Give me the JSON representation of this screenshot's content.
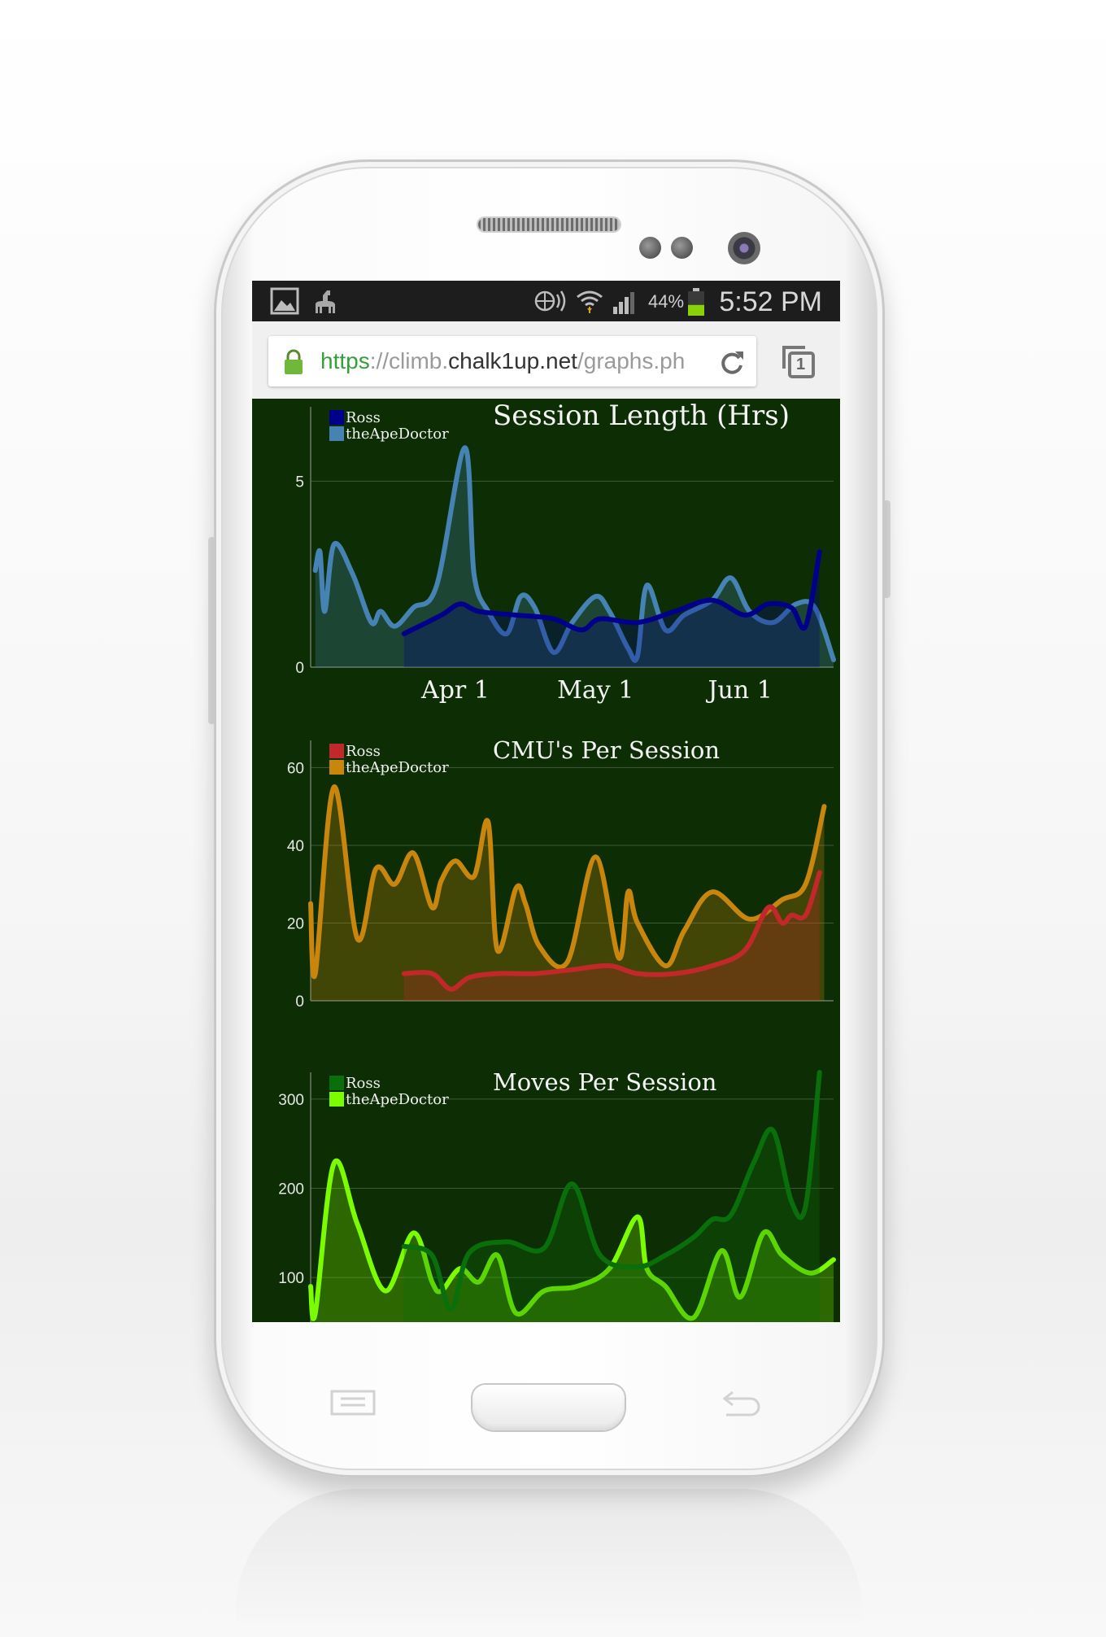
{
  "status_bar": {
    "time": "5:52 PM",
    "battery_percent": "44%",
    "battery_level": 0.44,
    "icons": [
      "gallery-icon",
      "alpaca-icon",
      "nfc-icon",
      "wifi-icon",
      "signal-icon",
      "battery-icon"
    ]
  },
  "browser": {
    "url_scheme": "https",
    "url_sep": "://climb.",
    "url_host": "chalk1up.net",
    "url_path": "/graphs.ph",
    "tab_count": "1"
  },
  "colors": {
    "page_bg": "#0d2e04",
    "status_bg": "#1d1d1d",
    "url_green": "#35a039"
  },
  "x_axis": {
    "tick_labels": [
      "Apr 1",
      "May 1",
      "Jun 1"
    ],
    "tick_dates": [
      "2013-04-01",
      "2013-05-01",
      "2013-06-01"
    ],
    "range": [
      "2013-03-01",
      "2013-06-21"
    ]
  },
  "chart_data": [
    {
      "type": "area",
      "title": "Session Length (Hrs)",
      "xlabel": "",
      "ylabel": "",
      "ylim": [
        0,
        7
      ],
      "y_ticks": [
        0,
        5
      ],
      "grid": true,
      "legend": "top-left",
      "series": [
        {
          "name": "Ross",
          "color": "#00008b",
          "x": [
            "2013-03-21",
            "2013-03-29",
            "2013-04-02",
            "2013-04-06",
            "2013-04-14",
            "2013-04-22",
            "2013-04-28",
            "2013-05-02",
            "2013-05-10",
            "2013-05-18",
            "2013-05-26",
            "2013-06-02",
            "2013-06-07",
            "2013-06-12",
            "2013-06-15",
            "2013-06-18"
          ],
          "y": [
            0.9,
            1.4,
            1.7,
            1.5,
            1.4,
            1.3,
            1.0,
            1.3,
            1.2,
            1.5,
            1.8,
            1.4,
            1.7,
            1.6,
            1.1,
            3.1
          ]
        },
        {
          "name": "theApeDoctor",
          "color": "#4682b4",
          "x": [
            "2013-03-02",
            "2013-03-03",
            "2013-03-04",
            "2013-03-06",
            "2013-03-10",
            "2013-03-14",
            "2013-03-16",
            "2013-03-19",
            "2013-03-23",
            "2013-03-28",
            "2013-04-03",
            "2013-04-05",
            "2013-04-08",
            "2013-04-12",
            "2013-04-15",
            "2013-04-18",
            "2013-04-22",
            "2013-04-26",
            "2013-05-01",
            "2013-05-04",
            "2013-05-08",
            "2013-05-10",
            "2013-05-12",
            "2013-05-16",
            "2013-05-20",
            "2013-05-26",
            "2013-05-30",
            "2013-06-03",
            "2013-06-08",
            "2013-06-13",
            "2013-06-17",
            "2013-06-21"
          ],
          "y": [
            2.6,
            3.1,
            1.5,
            3.3,
            2.5,
            1.2,
            1.5,
            1.1,
            1.6,
            2.2,
            5.9,
            2.5,
            1.5,
            0.9,
            1.9,
            1.6,
            0.4,
            1.2,
            1.9,
            1.5,
            0.5,
            0.3,
            2.2,
            1.0,
            1.4,
            1.8,
            2.4,
            1.5,
            1.2,
            1.7,
            1.6,
            0.2
          ]
        }
      ]
    },
    {
      "type": "area",
      "title": "CMU's Per Session",
      "xlabel": "",
      "ylabel": "",
      "ylim": [
        0,
        67
      ],
      "y_ticks": [
        0,
        20,
        40,
        60
      ],
      "grid": true,
      "legend": "top-left",
      "series": [
        {
          "name": "Ross",
          "color": "#c0282a",
          "x": [
            "2013-03-21",
            "2013-03-27",
            "2013-03-31",
            "2013-04-04",
            "2013-04-10",
            "2013-04-18",
            "2013-04-26",
            "2013-05-04",
            "2013-05-10",
            "2013-05-18",
            "2013-05-26",
            "2013-06-02",
            "2013-06-07",
            "2013-06-10",
            "2013-06-12",
            "2013-06-15",
            "2013-06-18"
          ],
          "y": [
            7,
            7,
            3,
            6,
            7,
            7,
            8,
            9,
            7,
            7,
            9,
            13,
            24,
            20,
            22,
            22,
            33
          ]
        },
        {
          "name": "theApeDoctor",
          "color": "#c8860d",
          "x": [
            "2013-03-01",
            "2013-03-02",
            "2013-03-06",
            "2013-03-11",
            "2013-03-15",
            "2013-03-19",
            "2013-03-23",
            "2013-03-27",
            "2013-03-29",
            "2013-04-01",
            "2013-04-05",
            "2013-04-08",
            "2013-04-10",
            "2013-04-14",
            "2013-04-16",
            "2013-04-19",
            "2013-04-25",
            "2013-05-01",
            "2013-05-06",
            "2013-05-08",
            "2013-05-10",
            "2013-05-16",
            "2013-05-20",
            "2013-05-26",
            "2013-06-03",
            "2013-06-10",
            "2013-06-15",
            "2013-06-19"
          ],
          "y": [
            25,
            7,
            55,
            16,
            34,
            30,
            38,
            24,
            31,
            36,
            32,
            46,
            13,
            29,
            25,
            14,
            10,
            37,
            11,
            28,
            20,
            9,
            18,
            28,
            21,
            26,
            30,
            50
          ]
        }
      ]
    },
    {
      "type": "area",
      "title": "Moves Per Session",
      "xlabel": "",
      "ylabel": "",
      "ylim": [
        50,
        330
      ],
      "y_ticks": [
        100,
        200,
        300
      ],
      "grid": true,
      "legend": "top-left",
      "series": [
        {
          "name": "Ross",
          "color": "#0a6e0a",
          "x": [
            "2013-03-21",
            "2013-03-27",
            "2013-03-31",
            "2013-04-04",
            "2013-04-12",
            "2013-04-20",
            "2013-04-26",
            "2013-05-02",
            "2013-05-10",
            "2013-05-16",
            "2013-05-22",
            "2013-05-26",
            "2013-05-30",
            "2013-06-04",
            "2013-06-08",
            "2013-06-12",
            "2013-06-15",
            "2013-06-18"
          ],
          "y": [
            135,
            125,
            65,
            128,
            140,
            133,
            205,
            125,
            112,
            125,
            145,
            165,
            170,
            230,
            265,
            185,
            180,
            330
          ]
        },
        {
          "name": "theApeDoctor",
          "color": "#7cfc00",
          "x": [
            "2013-03-01",
            "2013-03-02",
            "2013-03-06",
            "2013-03-11",
            "2013-03-17",
            "2013-03-23",
            "2013-03-27",
            "2013-03-29",
            "2013-04-02",
            "2013-04-06",
            "2013-04-10",
            "2013-04-14",
            "2013-04-20",
            "2013-04-27",
            "2013-05-04",
            "2013-05-10",
            "2013-05-12",
            "2013-05-16",
            "2013-05-22",
            "2013-05-28",
            "2013-06-01",
            "2013-06-06",
            "2013-06-10",
            "2013-06-16",
            "2013-06-21"
          ],
          "y": [
            90,
            60,
            228,
            160,
            85,
            150,
            95,
            85,
            110,
            95,
            125,
            60,
            85,
            90,
            110,
            168,
            110,
            90,
            55,
            130,
            78,
            150,
            125,
            105,
            120
          ]
        }
      ]
    }
  ]
}
